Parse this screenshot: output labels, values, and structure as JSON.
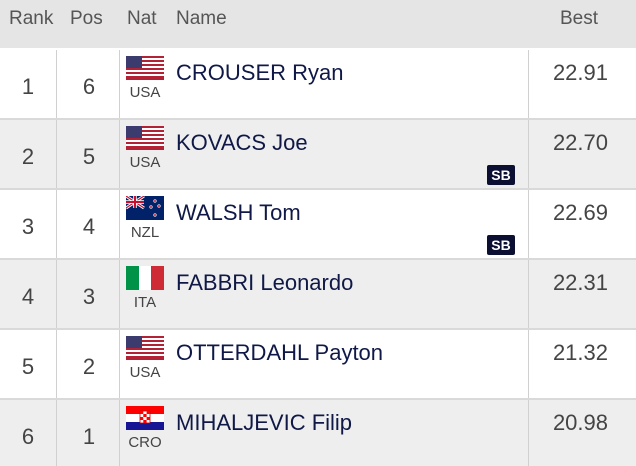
{
  "header": {
    "rank": "Rank",
    "pos": "Pos",
    "nat": "Nat",
    "name": "Name",
    "best": "Best"
  },
  "rows": [
    {
      "rank": "1",
      "pos": "6",
      "nat": "USA",
      "flag": "usa-flag-icon",
      "name": "CROUSER Ryan",
      "best": "22.91",
      "badge": ""
    },
    {
      "rank": "2",
      "pos": "5",
      "nat": "USA",
      "flag": "usa-flag-icon",
      "name": "KOVACS Joe",
      "best": "22.70",
      "badge": "SB"
    },
    {
      "rank": "3",
      "pos": "4",
      "nat": "NZL",
      "flag": "nzl-flag-icon",
      "name": "WALSH Tom",
      "best": "22.69",
      "badge": "SB"
    },
    {
      "rank": "4",
      "pos": "3",
      "nat": "ITA",
      "flag": "ita-flag-icon",
      "name": "FABBRI Leonardo",
      "best": "22.31",
      "badge": ""
    },
    {
      "rank": "5",
      "pos": "2",
      "nat": "USA",
      "flag": "usa-flag-icon",
      "name": "OTTERDAHL Payton",
      "best": "21.32",
      "badge": ""
    },
    {
      "rank": "6",
      "pos": "1",
      "nat": "CRO",
      "flag": "cro-flag-icon",
      "name": "MIHALJEVIC Filip",
      "best": "20.98",
      "badge": ""
    }
  ],
  "colors": {
    "header_bg": "#e5e5e5",
    "alt_row_bg": "#eeeeee",
    "name_text": "#0f1846",
    "badge_bg": "#0b1033"
  }
}
